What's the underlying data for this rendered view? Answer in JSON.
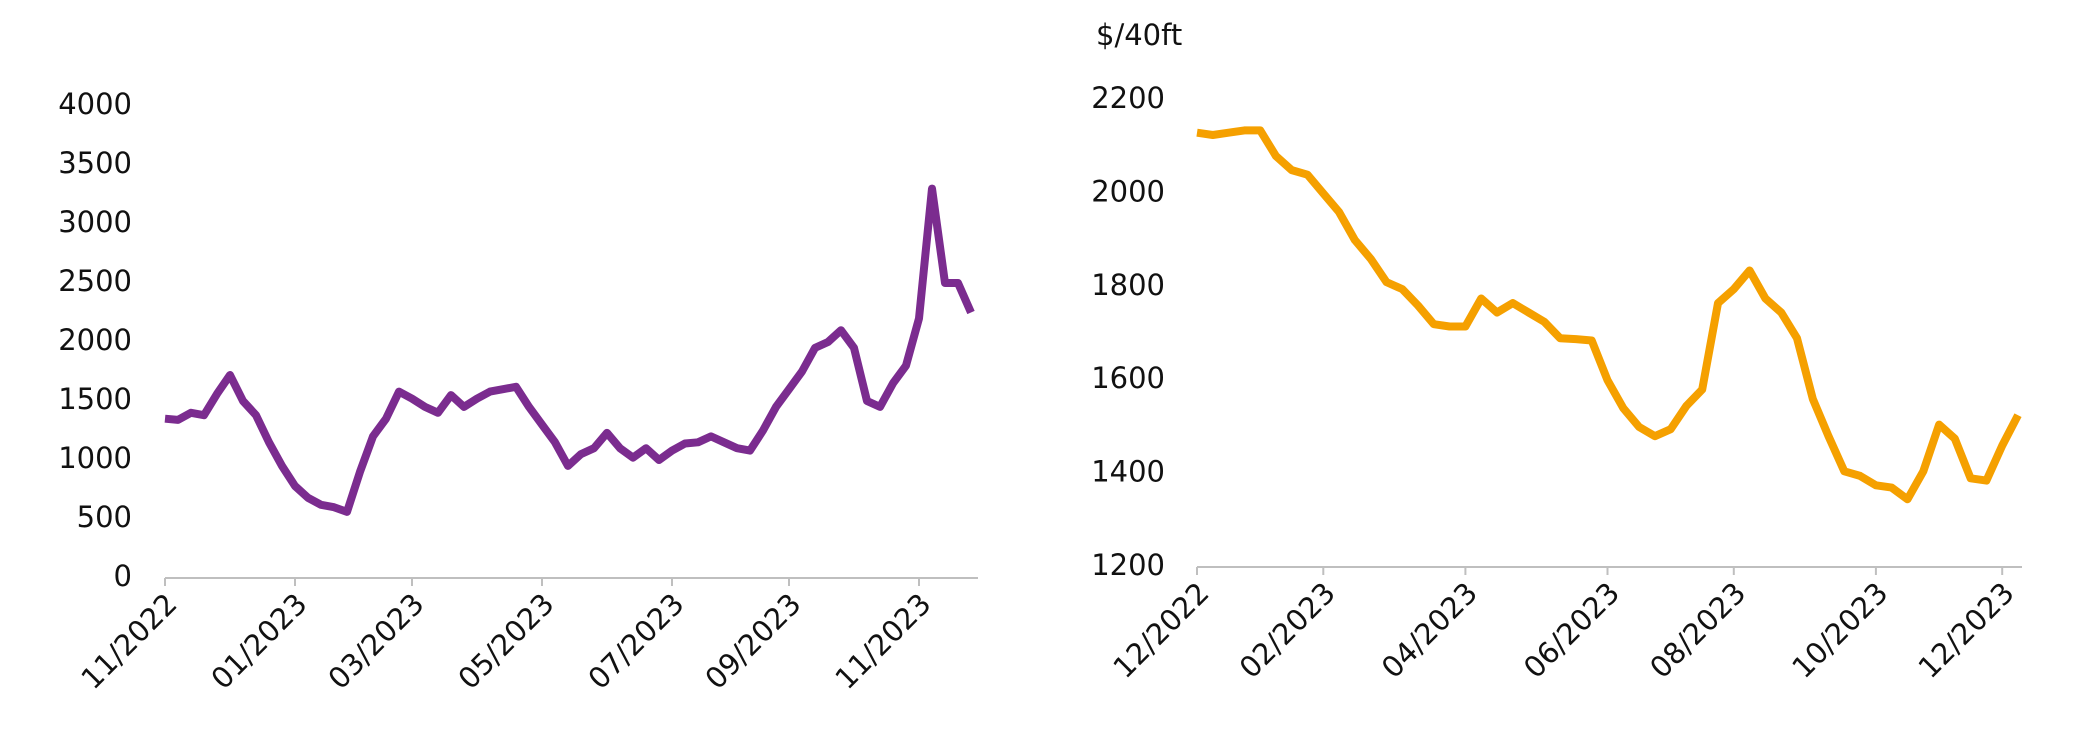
{
  "chart_data": [
    {
      "type": "line",
      "color": "#7b2c8f",
      "categories": [
        "11/2022",
        null,
        null,
        null,
        null,
        null,
        null,
        null,
        null,
        null,
        "01/2023",
        null,
        null,
        null,
        null,
        null,
        null,
        null,
        null,
        "03/2023",
        null,
        null,
        null,
        null,
        null,
        null,
        null,
        null,
        null,
        "05/2023",
        null,
        null,
        null,
        null,
        null,
        null,
        null,
        null,
        null,
        "07/2023",
        null,
        null,
        null,
        null,
        null,
        null,
        null,
        null,
        "09/2023",
        null,
        null,
        null,
        null,
        null,
        null,
        null,
        null,
        null,
        "11/2023",
        null,
        null,
        null,
        null
      ],
      "values": [
        1350,
        1340,
        1400,
        1380,
        1560,
        1720,
        1500,
        1380,
        1150,
        950,
        780,
        680,
        620,
        600,
        560,
        900,
        1200,
        1350,
        1580,
        1520,
        1450,
        1400,
        1550,
        1450,
        1520,
        1580,
        1600,
        1620,
        1450,
        1300,
        1150,
        950,
        1050,
        1100,
        1230,
        1100,
        1020,
        1100,
        1000,
        1080,
        1140,
        1150,
        1200,
        1150,
        1100,
        1080,
        1250,
        1450,
        1600,
        1750,
        1950,
        2000,
        2100,
        1950,
        1500,
        1450,
        1650,
        1800,
        2200,
        3300,
        2500,
        2500,
        2250
      ],
      "ylim": [
        0,
        4000
      ],
      "yticks": [
        0,
        500,
        1000,
        1500,
        2000,
        2500,
        3000,
        3500,
        4000
      ]
    },
    {
      "type": "line",
      "color": "#f5a000",
      "y_label": "$/40ft",
      "categories": [
        "12/2022",
        null,
        null,
        null,
        null,
        null,
        null,
        null,
        "02/2023",
        null,
        null,
        null,
        null,
        null,
        null,
        null,
        null,
        "04/2023",
        null,
        null,
        null,
        null,
        null,
        null,
        null,
        null,
        "06/2023",
        null,
        null,
        null,
        null,
        null,
        null,
        null,
        "08/2023",
        null,
        null,
        null,
        null,
        null,
        null,
        null,
        null,
        "10/2023",
        null,
        null,
        null,
        null,
        null,
        null,
        null,
        "12/2023",
        null
      ],
      "values": [
        2130,
        2125,
        2130,
        2135,
        2135,
        2080,
        2050,
        2040,
        2000,
        1960,
        1900,
        1860,
        1810,
        1795,
        1760,
        1720,
        1715,
        1715,
        1775,
        1745,
        1765,
        1745,
        1725,
        1690,
        1688,
        1685,
        1600,
        1540,
        1500,
        1480,
        1495,
        1545,
        1580,
        1765,
        1795,
        1835,
        1775,
        1745,
        1690,
        1560,
        1480,
        1405,
        1395,
        1375,
        1370,
        1345,
        1405,
        1505,
        1475,
        1390,
        1385,
        1460,
        1525
      ],
      "ylim": [
        1200,
        2200
      ],
      "yticks": [
        1200,
        1400,
        1600,
        1800,
        2000,
        2200
      ]
    }
  ]
}
